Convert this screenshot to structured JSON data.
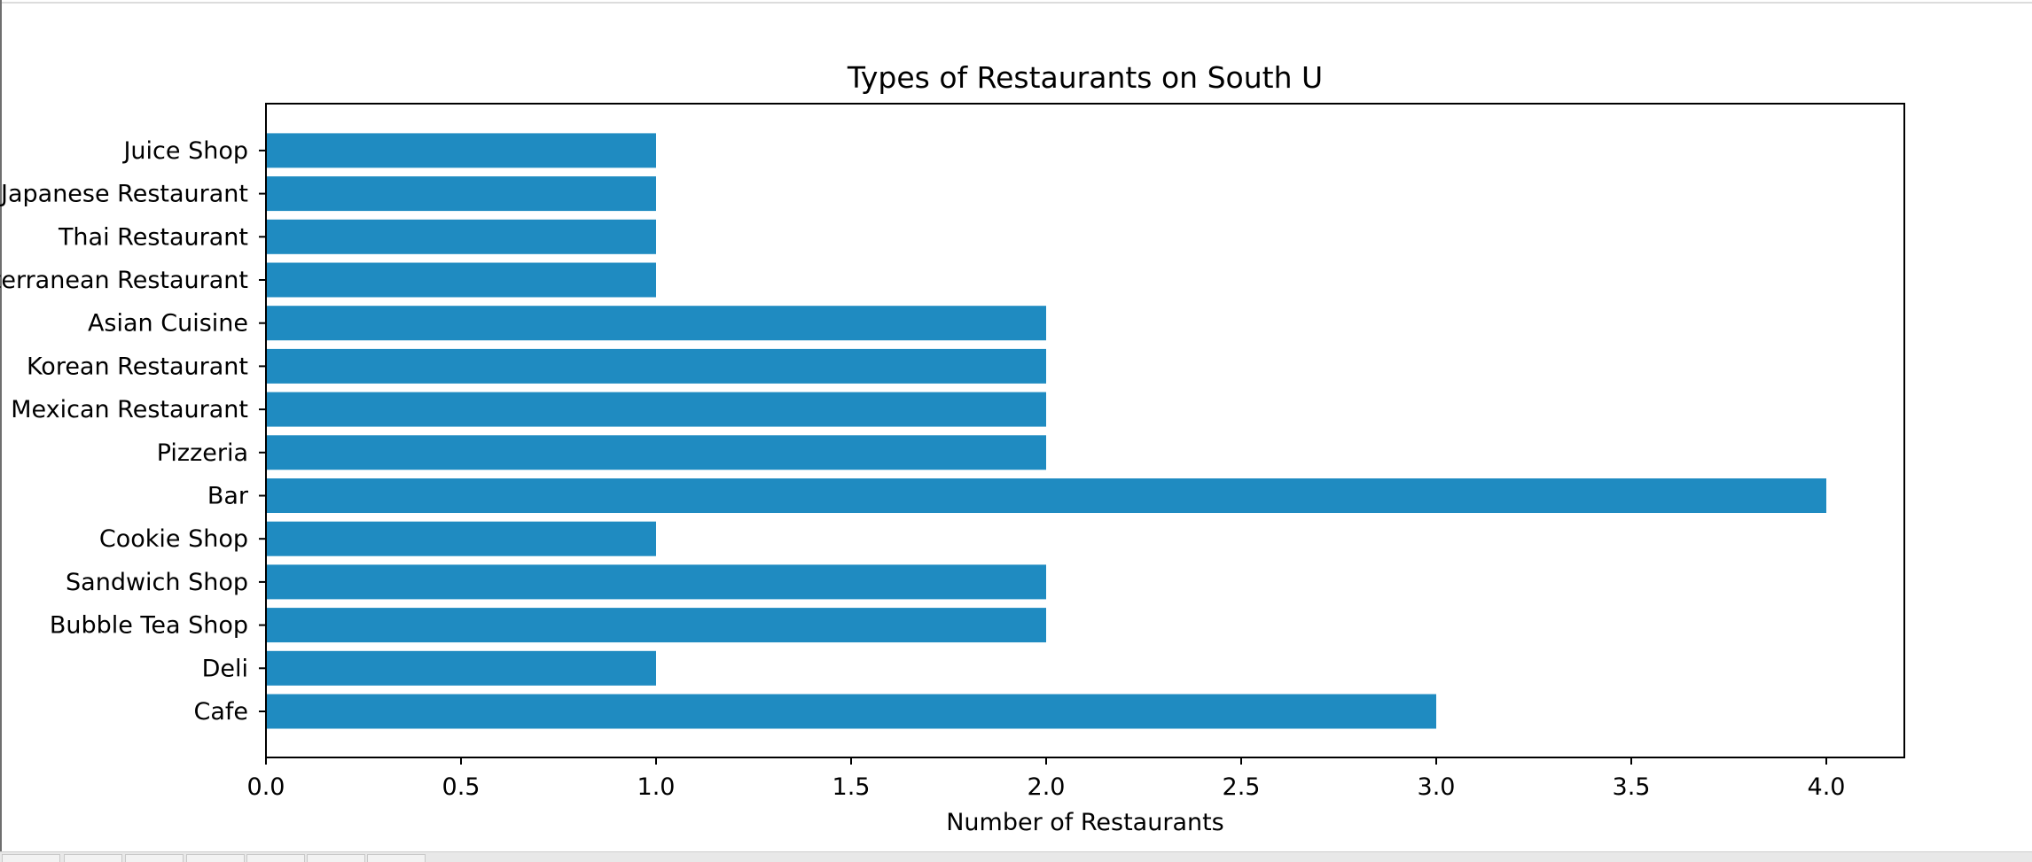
{
  "chart_data": {
    "type": "bar",
    "orientation": "horizontal",
    "title": "Types of Restaurants on South U",
    "xlabel": "Number of Restaurants",
    "ylabel": "",
    "categories": [
      "Cafe",
      "Deli",
      "Bubble Tea Shop",
      "Sandwich Shop",
      "Cookie Shop",
      "Bar",
      "Pizzeria",
      "Mexican Restaurant",
      "Korean Restaurant",
      "Asian Cuisine ",
      "Mediterranean Restaurant",
      "Thai Restaurant",
      "Japanese Restaurant",
      "Juice Shop"
    ],
    "values": [
      3,
      1,
      2,
      2,
      1,
      4,
      2,
      2,
      2,
      2,
      1,
      1,
      1,
      1
    ],
    "xlim": [
      0,
      4.2
    ],
    "xticks": [
      0.0,
      0.5,
      1.0,
      1.5,
      2.0,
      2.5,
      3.0,
      3.5,
      4.0
    ],
    "xtick_labels": [
      "0.0",
      "0.5",
      "1.0",
      "1.5",
      "2.0",
      "2.5",
      "3.0",
      "3.5",
      "4.0"
    ],
    "grid": false,
    "legend": "none",
    "bar_color": "#1f8bc1"
  }
}
